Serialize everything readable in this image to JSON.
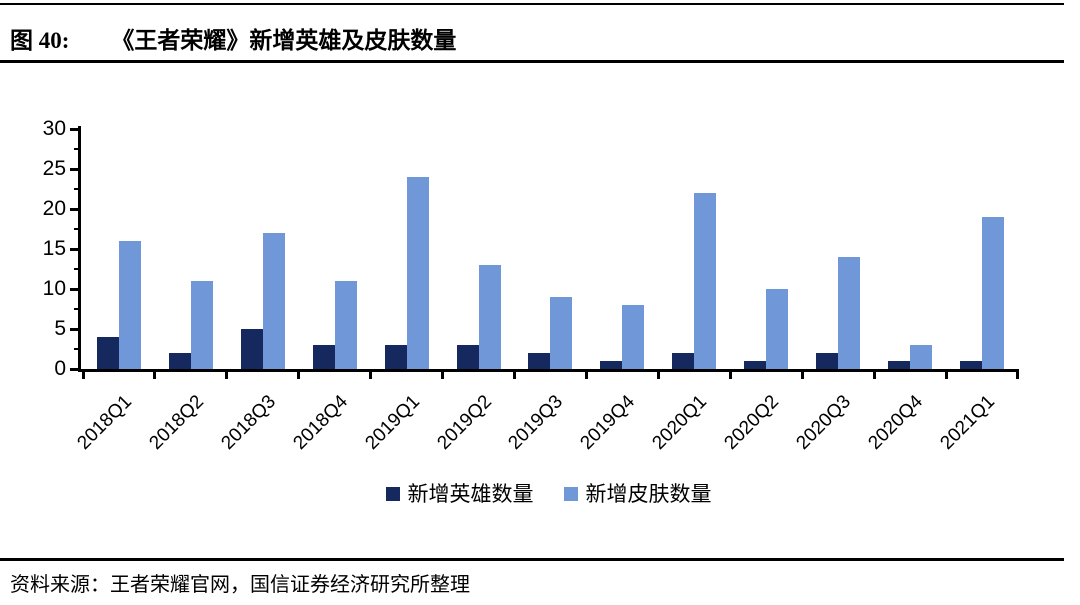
{
  "figure": {
    "label": "图 40:",
    "title": "《王者荣耀》新增英雄及皮肤数量"
  },
  "source": {
    "text": "资料来源：王者荣耀官网，国信证券经济研究所整理"
  },
  "chart_data": {
    "type": "bar",
    "title": "《王者荣耀》新增英雄及皮肤数量",
    "categories": [
      "2018Q1",
      "2018Q2",
      "2018Q3",
      "2018Q4",
      "2019Q1",
      "2019Q2",
      "2019Q3",
      "2019Q4",
      "2020Q1",
      "2020Q2",
      "2020Q3",
      "2020Q4",
      "2021Q1"
    ],
    "series": [
      {
        "name": "新增英雄数量",
        "color": "#15295e",
        "values": [
          4,
          2,
          5,
          3,
          3,
          3,
          2,
          1,
          2,
          1,
          2,
          1,
          1
        ]
      },
      {
        "name": "新增皮肤数量",
        "color": "#7098d8",
        "values": [
          16,
          11,
          17,
          11,
          24,
          13,
          9,
          8,
          22,
          10,
          14,
          3,
          19
        ]
      }
    ],
    "xlabel": "",
    "ylabel": "",
    "ylim": [
      0,
      30
    ],
    "yticks": [
      0,
      5,
      10,
      15,
      20,
      25,
      30
    ],
    "minor_tick_step": 2.5,
    "grid": false,
    "legend_position": "bottom",
    "axis_color": "#000000",
    "text_color": "#000000"
  }
}
